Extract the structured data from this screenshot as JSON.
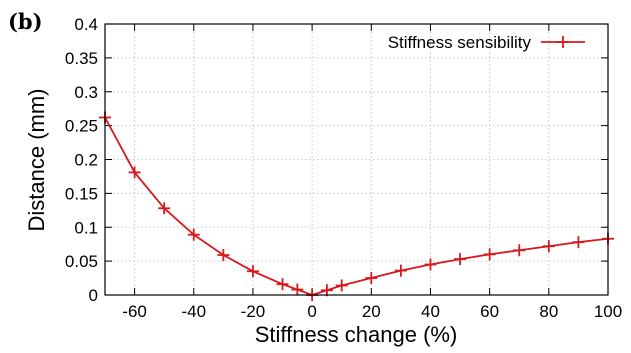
{
  "panel_label": "(b)",
  "chart_data": {
    "type": "line",
    "xlabel": "Stiffness change (%)",
    "ylabel": "Distance (mm)",
    "xlim": [
      -70,
      100
    ],
    "ylim": [
      0,
      0.4
    ],
    "xticks": [
      -60,
      -40,
      -20,
      0,
      20,
      40,
      60,
      80,
      100
    ],
    "xtick_labels": [
      "-60",
      "-40",
      "-20",
      "0",
      "20",
      "40",
      "60",
      "80",
      "100"
    ],
    "yticks": [
      0,
      0.05,
      0.1,
      0.15,
      0.2,
      0.25,
      0.3,
      0.35,
      0.4
    ],
    "ytick_labels": [
      "0",
      "0.05",
      "0.1",
      "0.15",
      "0.2",
      "0.25",
      "0.3",
      "0.35",
      "0.4"
    ],
    "grid": true,
    "legend_position": "top-right",
    "series": [
      {
        "name": "Stiffness sensibility",
        "color": "#d7191c",
        "marker": "plus",
        "x": [
          -70,
          -60,
          -50,
          -40,
          -30,
          -20,
          -10,
          -5,
          0,
          5,
          10,
          20,
          30,
          40,
          50,
          60,
          70,
          80,
          90,
          100
        ],
        "y": [
          0.262,
          0.181,
          0.128,
          0.089,
          0.059,
          0.035,
          0.016,
          0.008,
          0.0,
          0.007,
          0.014,
          0.025,
          0.036,
          0.045,
          0.053,
          0.06,
          0.066,
          0.072,
          0.078,
          0.083
        ]
      }
    ]
  }
}
